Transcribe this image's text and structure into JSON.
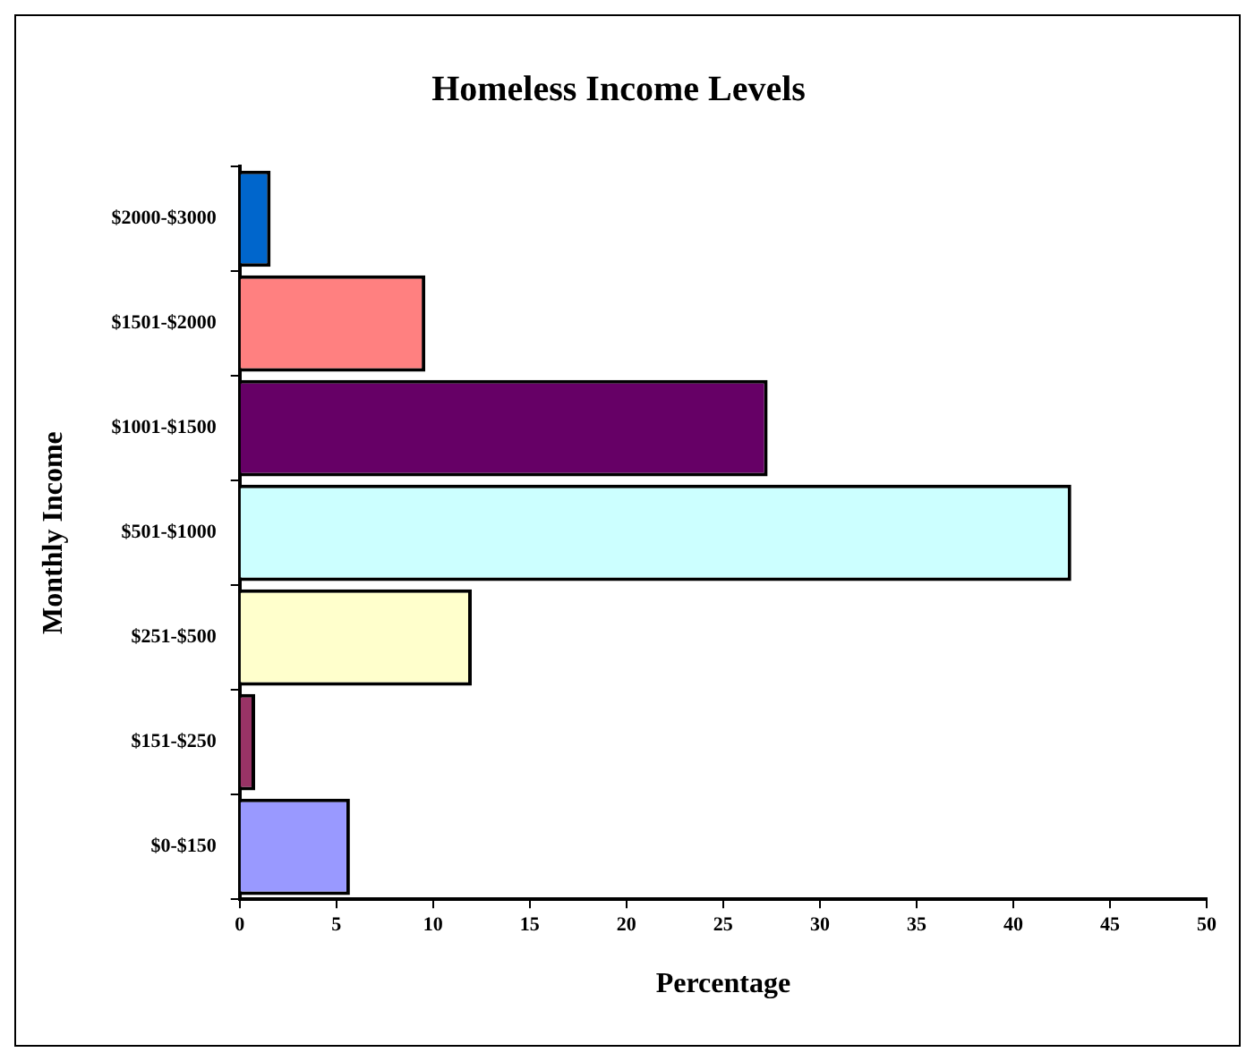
{
  "chart_data": {
    "type": "bar",
    "orientation": "horizontal",
    "title": "Homeless Income Levels",
    "xlabel": "Percentage",
    "ylabel": "Monthly Income",
    "categories": [
      "$2000-$3000",
      "$1501-$2000",
      "$1001-$1500",
      "$501-$1000",
      "$251-$500",
      "$151-$250",
      "$0-$150"
    ],
    "values": [
      1.6,
      9.6,
      27.3,
      43.0,
      12.0,
      0.8,
      5.7
    ],
    "colors": [
      "#0066cc",
      "#ff8080",
      "#660066",
      "#ccffff",
      "#ffffcc",
      "#993366",
      "#9999ff"
    ],
    "xlim": [
      0,
      50
    ],
    "xticks": [
      0,
      5,
      10,
      15,
      20,
      25,
      30,
      35,
      40,
      45,
      50
    ],
    "grid": false,
    "legend": false
  }
}
